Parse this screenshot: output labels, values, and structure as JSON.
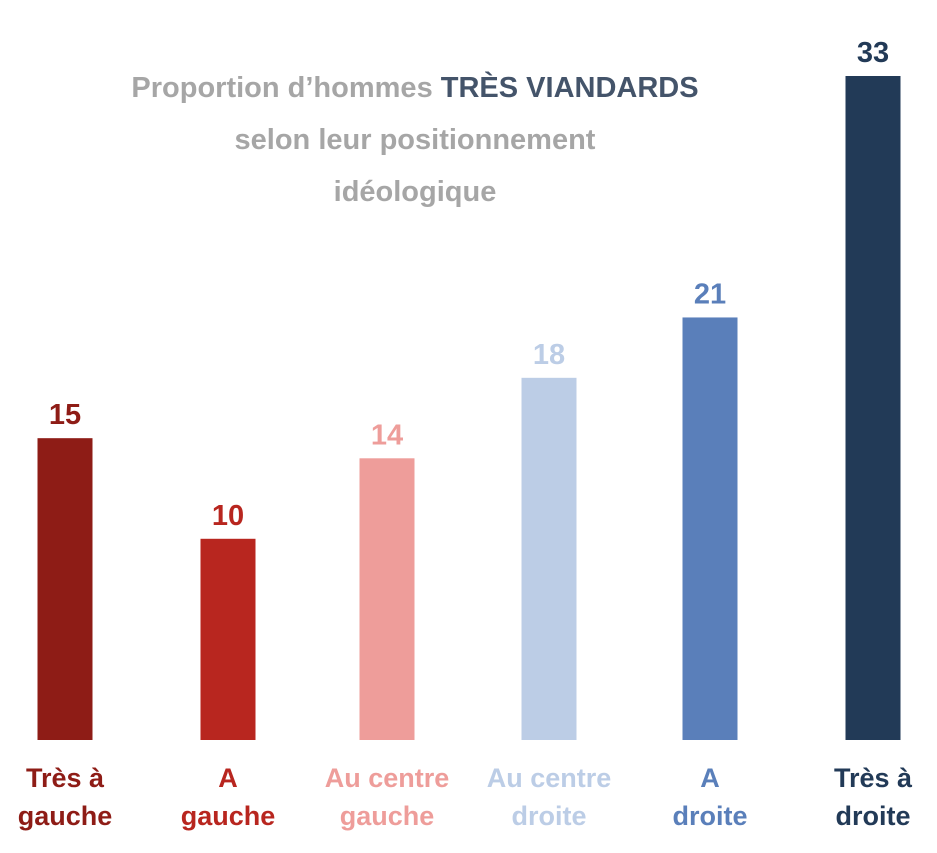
{
  "chart_data": {
    "type": "bar",
    "title": {
      "prefix": "Proportion d’hommes",
      "highlight": "TRÈS VIANDARDS",
      "line2": "selon leur positionnement",
      "line3": "idéologique"
    },
    "categories": [
      [
        "Très à",
        "gauche"
      ],
      [
        "A",
        "gauche"
      ],
      [
        "Au centre",
        "gauche"
      ],
      [
        "Au centre",
        "droite"
      ],
      [
        "A",
        "droite"
      ],
      [
        "Très à",
        "droite"
      ]
    ],
    "values": [
      15,
      10,
      14,
      18,
      21,
      33
    ],
    "colors": [
      "#8e1c16",
      "#b8261f",
      "#ee9d9a",
      "#bccde6",
      "#5a7fba",
      "#223a57"
    ],
    "ylim": [
      0,
      33
    ]
  }
}
